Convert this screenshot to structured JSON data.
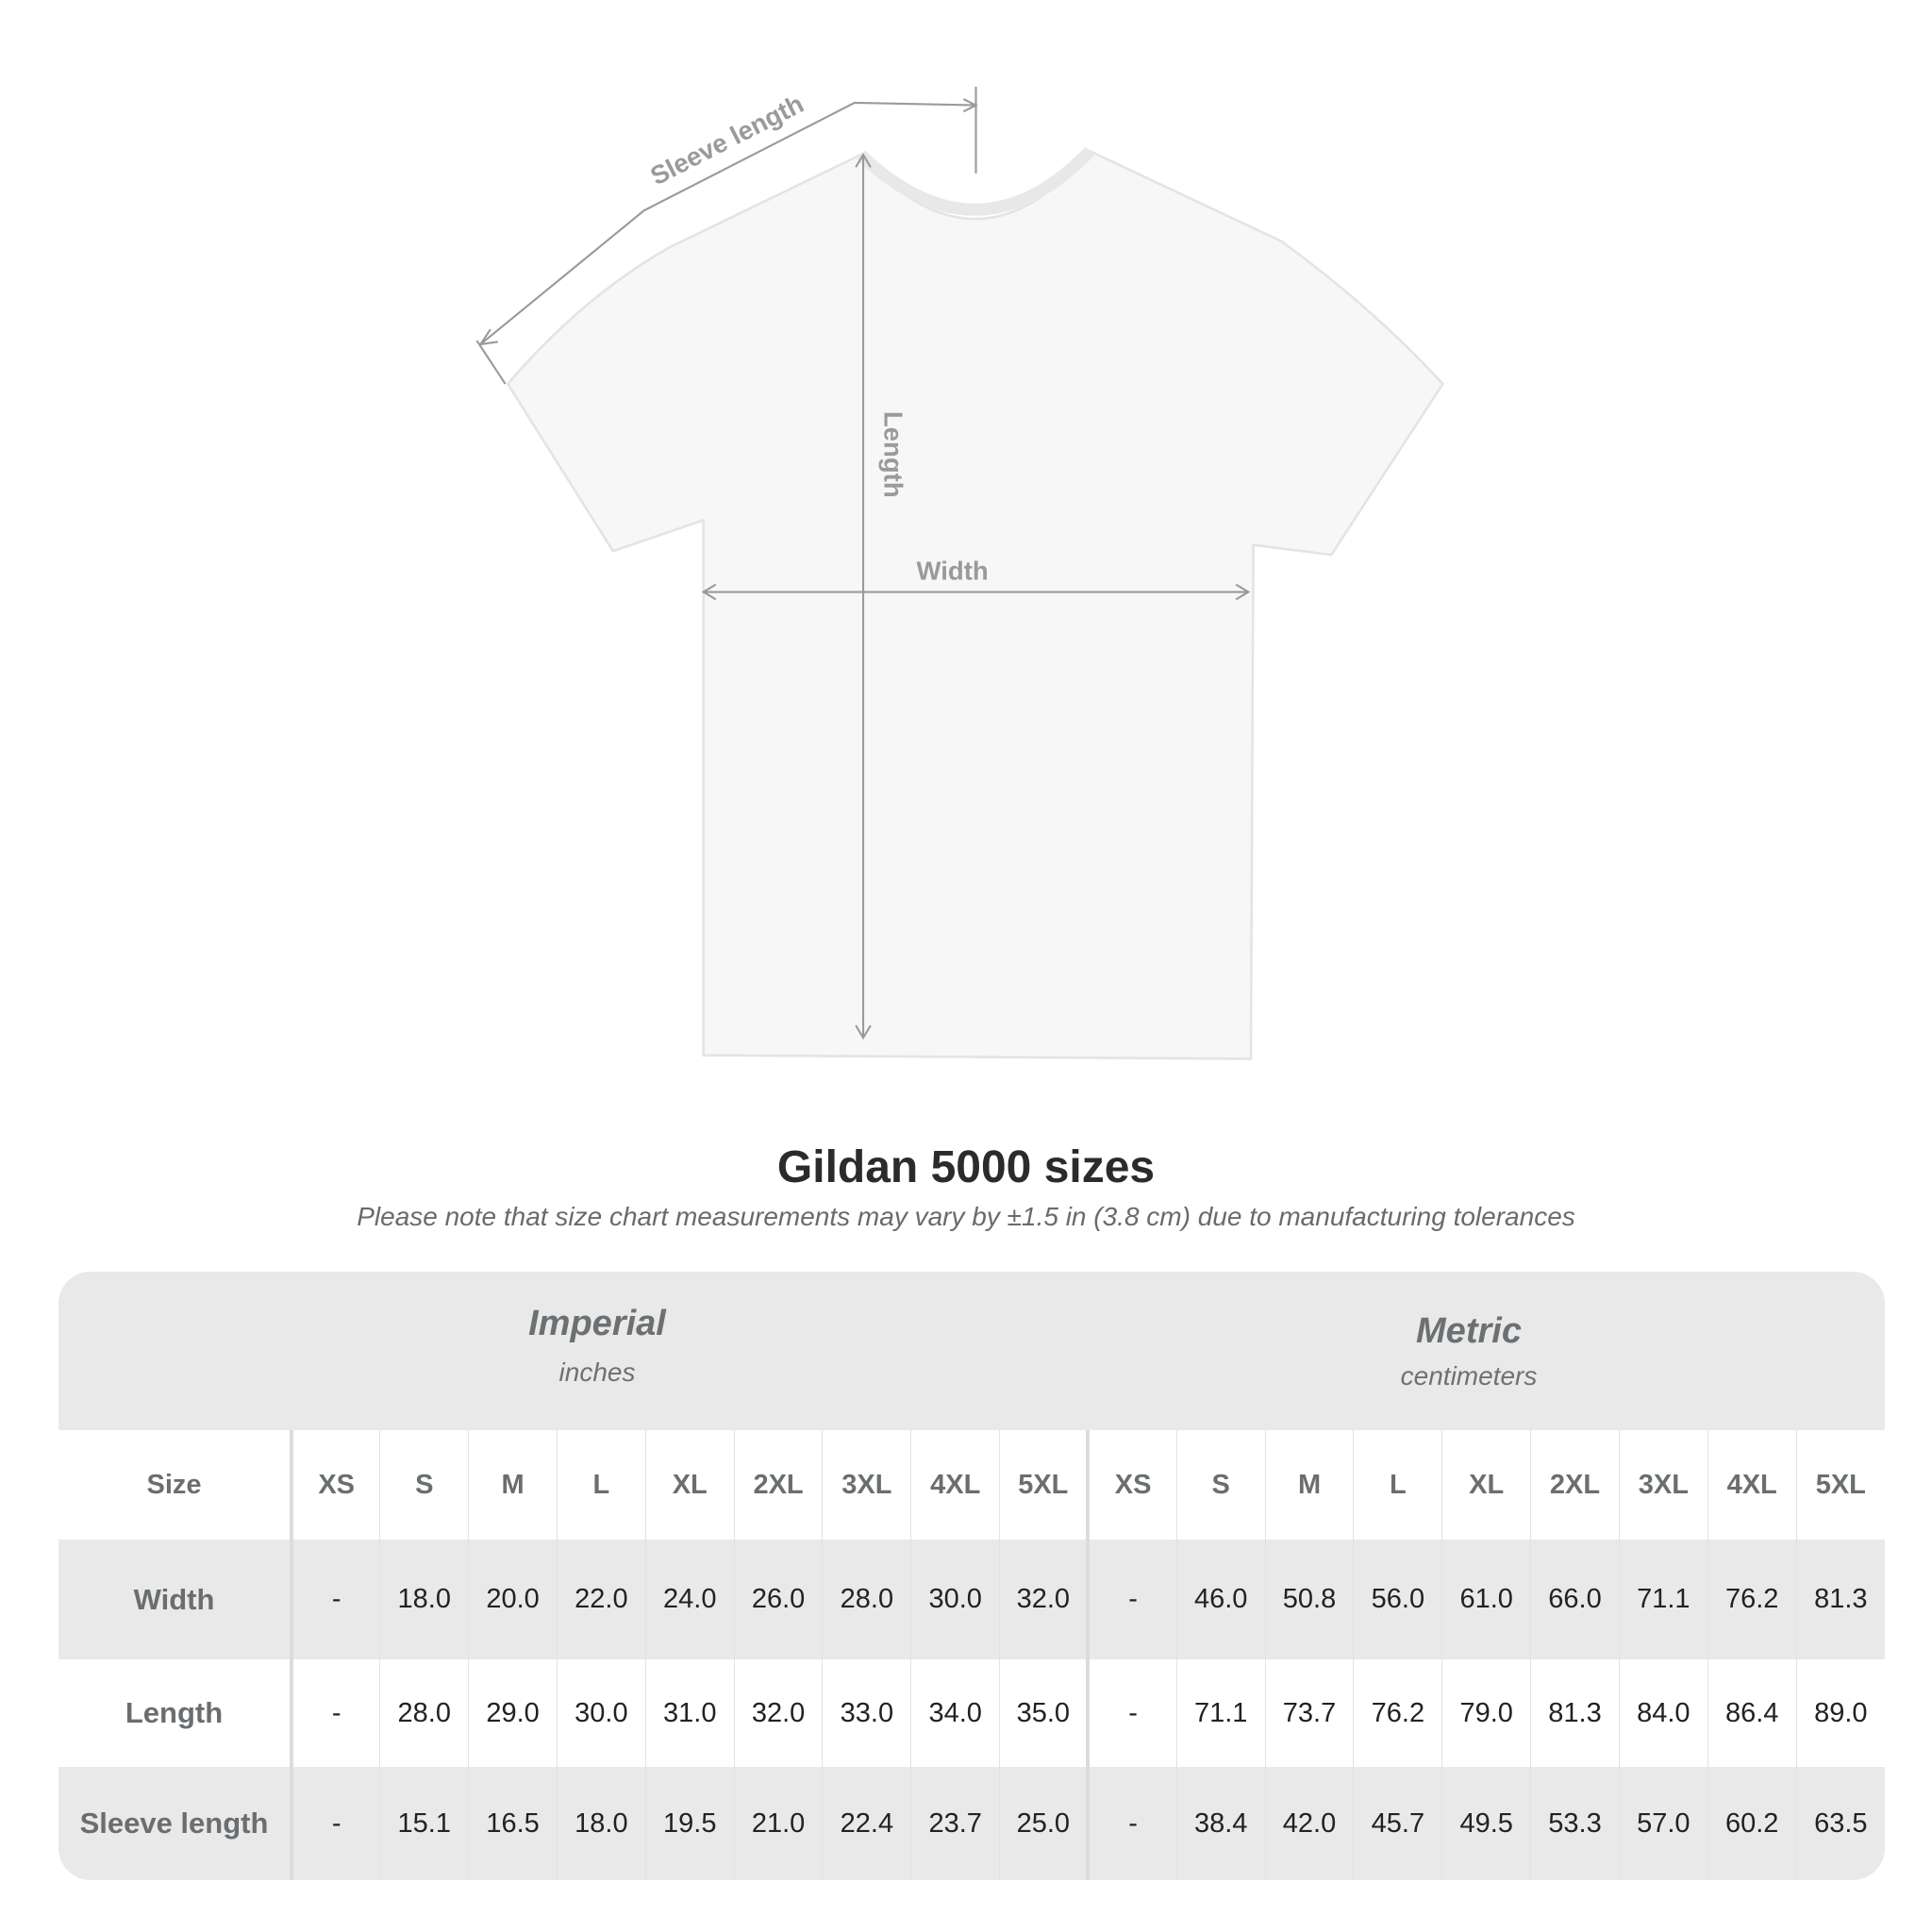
{
  "diagram": {
    "labels": {
      "sleeve_length": "Sleeve length",
      "length": "Length",
      "width": "Width"
    }
  },
  "title": "Gildan 5000 sizes",
  "subtitle": "Please note that size chart measurements may vary by ±1.5 in (3.8 cm) due to manufacturing tolerances",
  "table": {
    "imperial": {
      "name": "Imperial",
      "unit": "inches"
    },
    "metric": {
      "name": "Metric",
      "unit": "centimeters"
    },
    "size_label": "Size",
    "sizes": [
      "XS",
      "S",
      "M",
      "L",
      "XL",
      "2XL",
      "3XL",
      "4XL",
      "5XL"
    ],
    "rows": [
      {
        "label": "Width",
        "imperial": [
          "-",
          "18.0",
          "20.0",
          "22.0",
          "24.0",
          "26.0",
          "28.0",
          "30.0",
          "32.0"
        ],
        "metric": [
          "-",
          "46.0",
          "50.8",
          "56.0",
          "61.0",
          "66.0",
          "71.1",
          "76.2",
          "81.3"
        ]
      },
      {
        "label": "Length",
        "imperial": [
          "-",
          "28.0",
          "29.0",
          "30.0",
          "31.0",
          "32.0",
          "33.0",
          "34.0",
          "35.0"
        ],
        "metric": [
          "-",
          "71.1",
          "73.7",
          "76.2",
          "79.0",
          "81.3",
          "84.0",
          "86.4",
          "89.0"
        ]
      },
      {
        "label": "Sleeve length",
        "imperial": [
          "-",
          "15.1",
          "16.5",
          "18.0",
          "19.5",
          "21.0",
          "22.4",
          "23.7",
          "25.0"
        ],
        "metric": [
          "-",
          "38.4",
          "42.0",
          "45.7",
          "49.5",
          "53.3",
          "57.0",
          "60.2",
          "63.5"
        ]
      }
    ]
  }
}
